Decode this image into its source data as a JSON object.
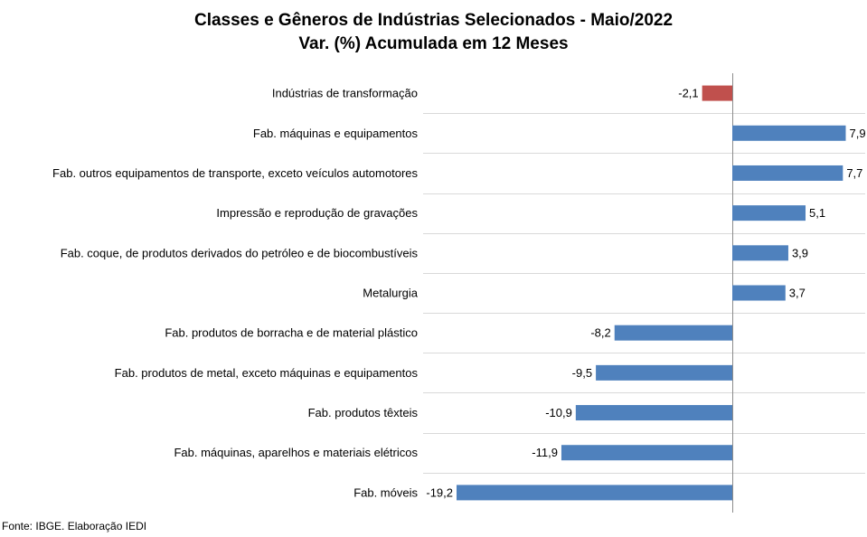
{
  "title_line1": "Classes e Gêneros de Indústrias Selecionados - Maio/2022",
  "title_line2": "Var. (%) Acumulada em 12 Meses",
  "source": "Fonte: IBGE. Elaboração IEDI",
  "colors": {
    "positive": "#4f81bd",
    "negative": "#c0504d",
    "grid": "#d9d9d9",
    "axis": "#8c8c8c"
  },
  "chart_data": {
    "type": "bar",
    "orientation": "horizontal",
    "title": "Classes e Gêneros de Indústrias Selecionados - Maio/2022 / Var. (%) Acumulada em 12 Meses",
    "categories": [
      "Indústrias de transformação",
      "Fab. máquinas e equipamentos",
      "Fab. outros equipamentos de transporte, exceto veículos automotores",
      "Impressão e reprodução de gravações",
      "Fab. coque, de produtos derivados do petróleo e de biocombustíveis",
      "Metalurgia",
      "Fab. produtos de borracha e de material plástico",
      "Fab. produtos de metal, exceto máquinas e equipamentos",
      "Fab. produtos têxteis",
      "Fab. máquinas, aparelhos e materiais elétricos",
      "Fab. móveis"
    ],
    "values": [
      -2.1,
      7.9,
      7.7,
      5.1,
      3.9,
      3.7,
      -8.2,
      -9.5,
      -10.9,
      -11.9,
      -19.2
    ],
    "value_labels": [
      "-2,1",
      "7,9",
      "7,7",
      "5,1",
      "3,9",
      "3,7",
      "-8,2",
      "-9,5",
      "-10,9",
      "-11,9",
      "-19,2"
    ],
    "xlim": [
      -19.2,
      9.0
    ],
    "grid": true,
    "legend": "none"
  }
}
